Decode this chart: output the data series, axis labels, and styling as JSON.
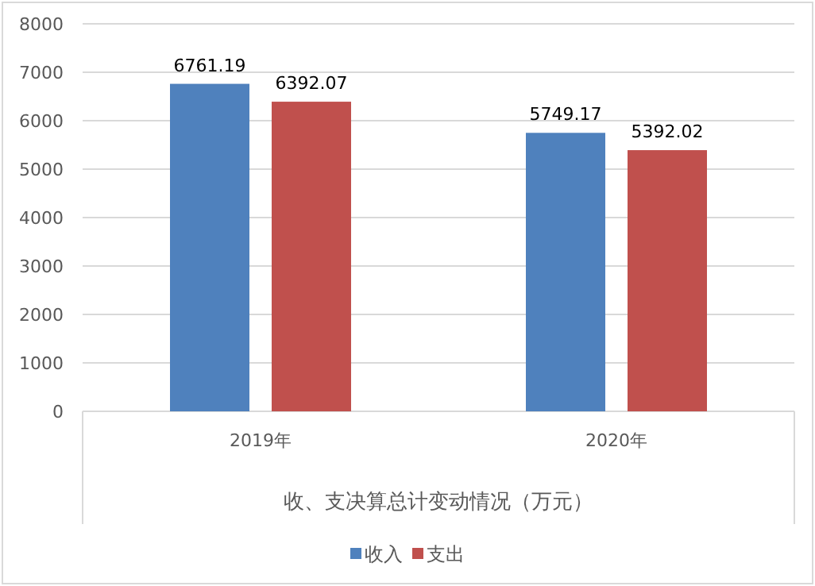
{
  "chart_data": {
    "type": "bar",
    "xlabel": "收、支决算总计变动情况（万元）",
    "categories": [
      "2019年",
      "2020年"
    ],
    "series": [
      {
        "name": "收入",
        "color": "#4f81bd",
        "values": [
          6761.19,
          5749.17
        ]
      },
      {
        "name": "支出",
        "color": "#c0504d",
        "values": [
          6392.07,
          5392.02
        ]
      }
    ],
    "ylim": [
      0,
      8000
    ],
    "yticks": [
      0,
      1000,
      2000,
      3000,
      4000,
      5000,
      6000,
      7000,
      8000
    ],
    "grid": "y",
    "legend": "bottom",
    "data_labels": true
  }
}
